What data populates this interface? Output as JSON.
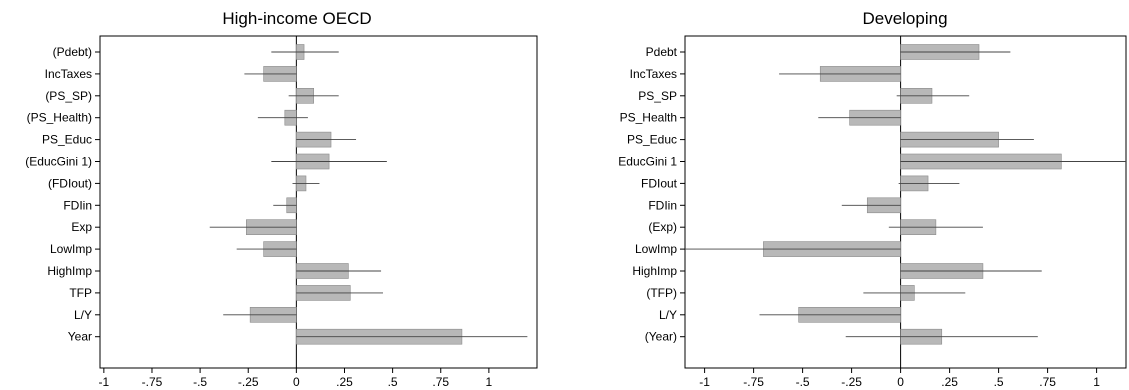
{
  "chart_data": [
    {
      "type": "bar",
      "orientation": "horizontal",
      "title": "High-income OECD",
      "categories": [
        "(Pdebt)",
        "IncTaxes",
        "(PS_SP)",
        "(PS_Health)",
        "PS_Educ",
        "(EducGini 1)",
        "(FDIout)",
        "FDIin",
        "Exp",
        "LowImp",
        "HighImp",
        "TFP",
        "L/Y",
        "Year"
      ],
      "values": [
        0.04,
        -0.17,
        0.09,
        -0.06,
        0.18,
        0.17,
        0.05,
        -0.05,
        -0.26,
        -0.17,
        0.27,
        0.28,
        -0.24,
        0.86
      ],
      "ci_low": [
        -0.13,
        -0.27,
        -0.04,
        -0.2,
        0.0,
        -0.13,
        -0.02,
        -0.12,
        -0.45,
        -0.31,
        0.0,
        0.0,
        -0.38,
        0.0
      ],
      "ci_high": [
        0.22,
        0.0,
        0.22,
        0.06,
        0.31,
        0.47,
        0.12,
        0.0,
        0.0,
        0.0,
        0.44,
        0.45,
        0.0,
        1.2
      ],
      "xlim": [
        -1.02,
        1.25
      ],
      "ticks": [
        -1,
        -0.75,
        -0.5,
        -0.25,
        0,
        0.25,
        0.5,
        0.75,
        1
      ],
      "tick_labels": [
        "-1",
        "-.75",
        "-.5",
        "-.25",
        "0",
        ".25",
        ".5",
        ".75",
        "1"
      ],
      "grid": false,
      "xlabel": "",
      "ylabel": ""
    },
    {
      "type": "bar",
      "orientation": "horizontal",
      "title": "Developing",
      "categories": [
        "Pdebt",
        "IncTaxes",
        "PS_SP",
        "PS_Health",
        "PS_Educ",
        "EducGini 1",
        "FDIout",
        "FDIin",
        "(Exp)",
        "LowImp",
        "HighImp",
        "(TFP)",
        "L/Y",
        "(Year)"
      ],
      "values": [
        0.4,
        -0.41,
        0.16,
        -0.26,
        0.5,
        0.82,
        0.14,
        -0.17,
        0.18,
        -0.7,
        0.42,
        0.07,
        -0.52,
        0.21
      ],
      "ci_low": [
        0.0,
        -0.62,
        -0.02,
        -0.42,
        0.0,
        0.0,
        -0.01,
        -0.3,
        -0.06,
        -1.1,
        0.0,
        -0.19,
        -0.72,
        -0.28
      ],
      "ci_high": [
        0.56,
        0.0,
        0.35,
        0.0,
        0.68,
        1.15,
        0.3,
        0.0,
        0.42,
        0.0,
        0.72,
        0.33,
        0.0,
        0.7
      ],
      "xlim": [
        -1.1,
        1.15
      ],
      "ticks": [
        -1,
        -0.75,
        -0.5,
        -0.25,
        0,
        0.25,
        0.5,
        0.75,
        1
      ],
      "tick_labels": [
        "-1",
        "-.75",
        "-.5",
        "-.25",
        "0",
        ".25",
        ".5",
        ".75",
        "1"
      ],
      "grid": false,
      "xlabel": "",
      "ylabel": ""
    }
  ]
}
